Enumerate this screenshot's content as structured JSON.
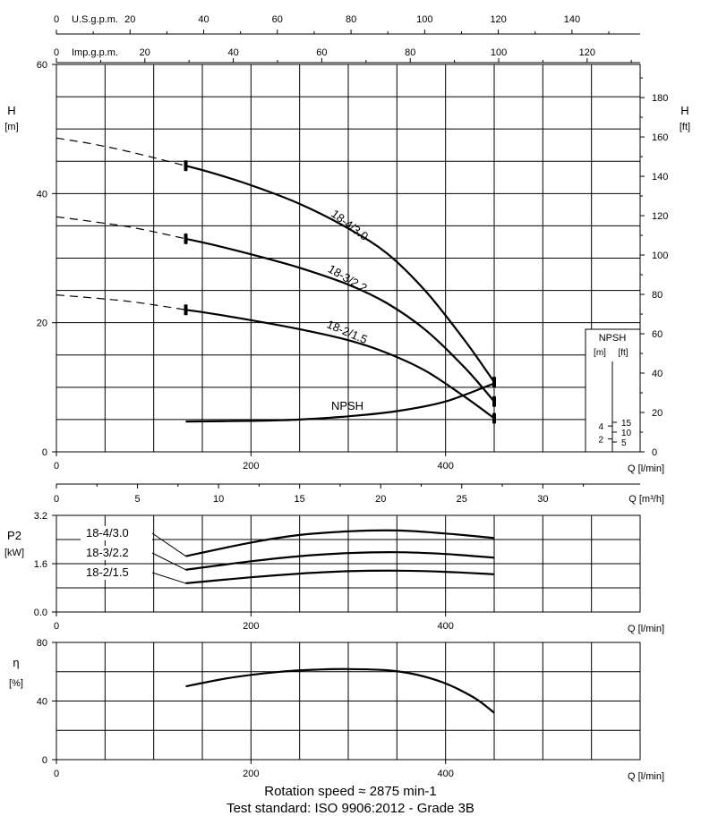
{
  "footer": {
    "rotation_speed": "Rotation speed ≈ 2875 min-1",
    "test_standard": "Test standard: ISO 9906:2012 - Grade 3B"
  },
  "chart_data": [
    {
      "type": "line",
      "panel": "head",
      "xlabel": "Q [l/min]",
      "xlim": [
        0,
        600
      ],
      "x_ticks": [
        "0",
        "200",
        "400"
      ],
      "ylabel": "H [m]",
      "ylim": [
        0,
        60
      ],
      "y_ticks": [
        "0",
        "20",
        "40",
        "60"
      ],
      "y2label": "H [ft]",
      "y2_ticks": [
        "0",
        "20",
        "40",
        "60",
        "80",
        "100",
        "120",
        "140",
        "160",
        "180"
      ],
      "top_axis_usgpm": {
        "label": "U.S.g.p.m.",
        "ticks": [
          "0",
          "20",
          "40",
          "60",
          "80",
          "100",
          "120",
          "140"
        ]
      },
      "top_axis_impgpm": {
        "label": "Imp.g.p.m.",
        "ticks": [
          "0",
          "20",
          "40",
          "60",
          "80",
          "100",
          "120"
        ]
      },
      "grid": true,
      "series": [
        {
          "name": "18-4/3.0",
          "color": "#000000",
          "x": [
            133,
            160,
            200,
            250,
            300,
            340,
            380,
            420,
            450
          ],
          "y": [
            44.3,
            43.2,
            41.3,
            38.4,
            34.6,
            30.7,
            24.8,
            17.2,
            10.8
          ],
          "dashed_x": [
            0,
            40,
            80,
            133
          ],
          "dashed_y": [
            48.6,
            47.6,
            46.3,
            44.3
          ]
        },
        {
          "name": "18-3/2.2",
          "color": "#000000",
          "x": [
            133,
            160,
            200,
            250,
            300,
            340,
            380,
            420,
            450
          ],
          "y": [
            33.0,
            32.1,
            30.6,
            28.5,
            25.9,
            23.0,
            18.8,
            13.0,
            7.8
          ],
          "dashed_x": [
            0,
            40,
            80,
            133
          ],
          "dashed_y": [
            36.4,
            35.6,
            34.7,
            33.0
          ]
        },
        {
          "name": "18-2/1.5",
          "color": "#000000",
          "x": [
            133,
            160,
            200,
            250,
            300,
            340,
            380,
            420,
            450
          ],
          "y": [
            22.0,
            21.4,
            20.4,
            19.0,
            17.3,
            15.3,
            12.5,
            8.5,
            5.2
          ],
          "dashed_x": [
            0,
            40,
            80,
            133
          ],
          "dashed_y": [
            24.3,
            23.8,
            23.2,
            22.0
          ]
        },
        {
          "name": "NPSH",
          "color": "#000000",
          "x": [
            133,
            200,
            250,
            300,
            350,
            400,
            450
          ],
          "y": [
            4.7,
            4.8,
            5.0,
            5.5,
            6.3,
            7.8,
            10.6
          ]
        }
      ],
      "npsh_inset": {
        "title": "NPSH",
        "units": [
          "[m]",
          "[ft]"
        ],
        "m_ticks": [
          "2",
          "4"
        ],
        "ft_ticks": [
          "5",
          "10",
          "15"
        ]
      }
    },
    {
      "type": "axis",
      "panel": "flow-m3h",
      "xlabel": "Q [m³/h]",
      "xlim": [
        0,
        36
      ],
      "x_ticks": [
        "0",
        "5",
        "10",
        "15",
        "20",
        "25",
        "30"
      ]
    },
    {
      "type": "line",
      "panel": "power",
      "xlabel": "Q [l/min]",
      "xlim": [
        0,
        600
      ],
      "x_ticks": [
        "0",
        "200",
        "400"
      ],
      "ylabel": "P2 [kW]",
      "ylim": [
        0,
        3.2
      ],
      "y_ticks": [
        "0.0",
        "1.6",
        "3.2"
      ],
      "grid": true,
      "series": [
        {
          "name": "18-4/3.0",
          "color": "#000000",
          "x": [
            133,
            200,
            250,
            300,
            350,
            400,
            450
          ],
          "y": [
            1.85,
            2.3,
            2.55,
            2.67,
            2.7,
            2.6,
            2.45
          ]
        },
        {
          "name": "18-3/2.2",
          "color": "#000000",
          "x": [
            133,
            200,
            250,
            300,
            350,
            400,
            450
          ],
          "y": [
            1.4,
            1.68,
            1.85,
            1.95,
            1.98,
            1.92,
            1.8
          ]
        },
        {
          "name": "18-2/1.5",
          "color": "#000000",
          "x": [
            133,
            200,
            250,
            300,
            350,
            400,
            450
          ],
          "y": [
            0.95,
            1.15,
            1.27,
            1.35,
            1.37,
            1.33,
            1.25
          ]
        }
      ]
    },
    {
      "type": "line",
      "panel": "efficiency",
      "xlabel": "Q [l/min]",
      "xlim": [
        0,
        600
      ],
      "x_ticks": [
        "0",
        "200",
        "400"
      ],
      "ylabel": "η [%]",
      "ylim": [
        0,
        80
      ],
      "y_ticks": [
        "0",
        "40",
        "80"
      ],
      "grid": true,
      "series": [
        {
          "name": "",
          "color": "#000000",
          "x": [
            133,
            180,
            230,
            270,
            300,
            340,
            370,
            400,
            430,
            450
          ],
          "y": [
            50,
            56,
            60,
            61.5,
            61.8,
            61,
            58,
            52,
            42,
            32
          ]
        }
      ]
    }
  ]
}
